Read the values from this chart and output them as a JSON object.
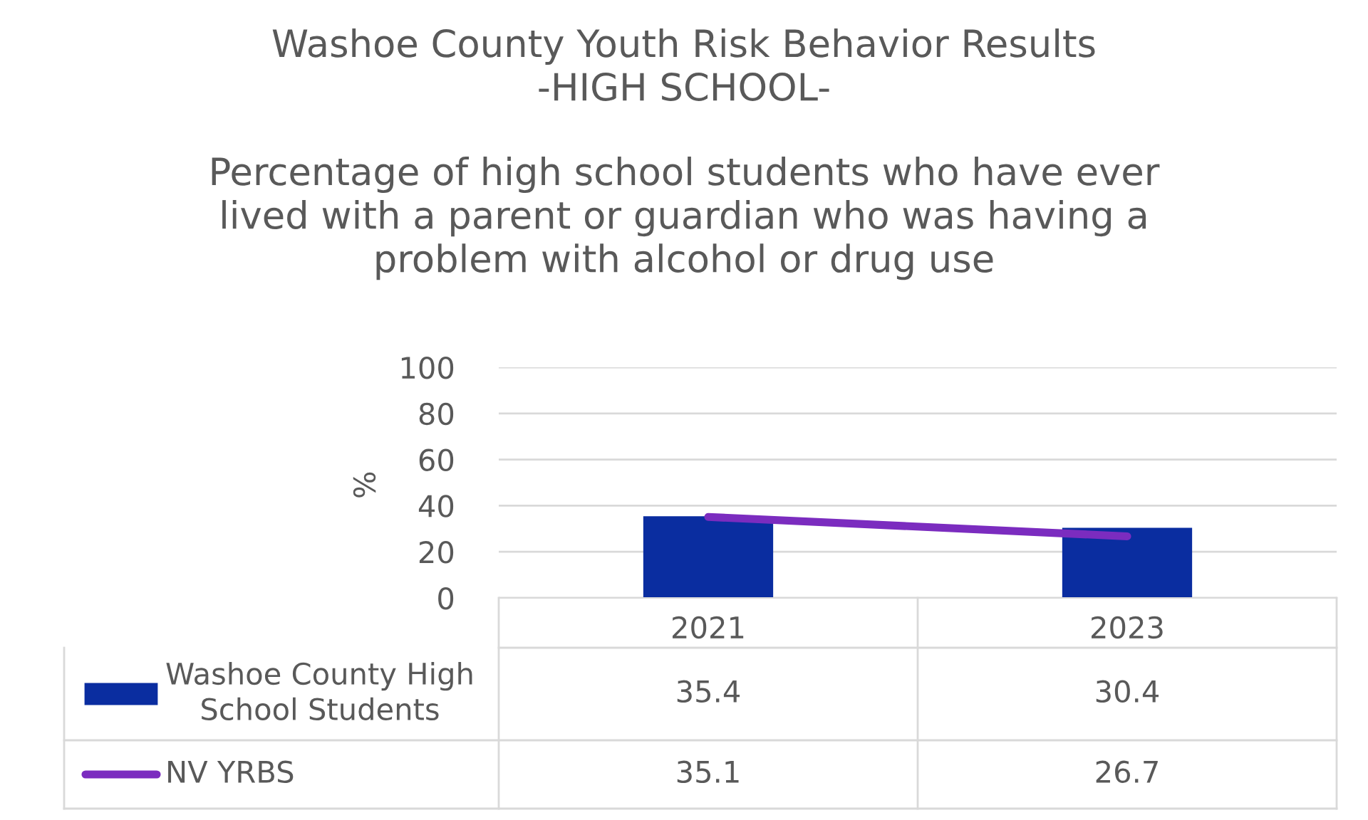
{
  "chart_data": {
    "type": "bar",
    "title": "Washoe County Youth Risk Behavior Results\n-HIGH SCHOOL-",
    "subtitle": "Percentage of high school students who have ever\nlived with a parent or guardian who was having a\nproblem with alcohol or drug use",
    "ylabel": "%",
    "categories": [
      "2021",
      "2023"
    ],
    "series": [
      {
        "name": "Washoe County High\nSchool Students",
        "type": "bar",
        "color": "#0a2da0",
        "values": [
          35.4,
          30.4
        ]
      },
      {
        "name": "NV YRBS",
        "type": "line",
        "color": "#7b2cbf",
        "values": [
          35.1,
          26.7
        ]
      }
    ],
    "ylim": [
      0,
      100
    ],
    "yticks": [
      0,
      20,
      40,
      60,
      80,
      100
    ],
    "grid": "y",
    "data_labels": true,
    "marker": "none",
    "line_style": "solid",
    "legend": "bottom"
  }
}
